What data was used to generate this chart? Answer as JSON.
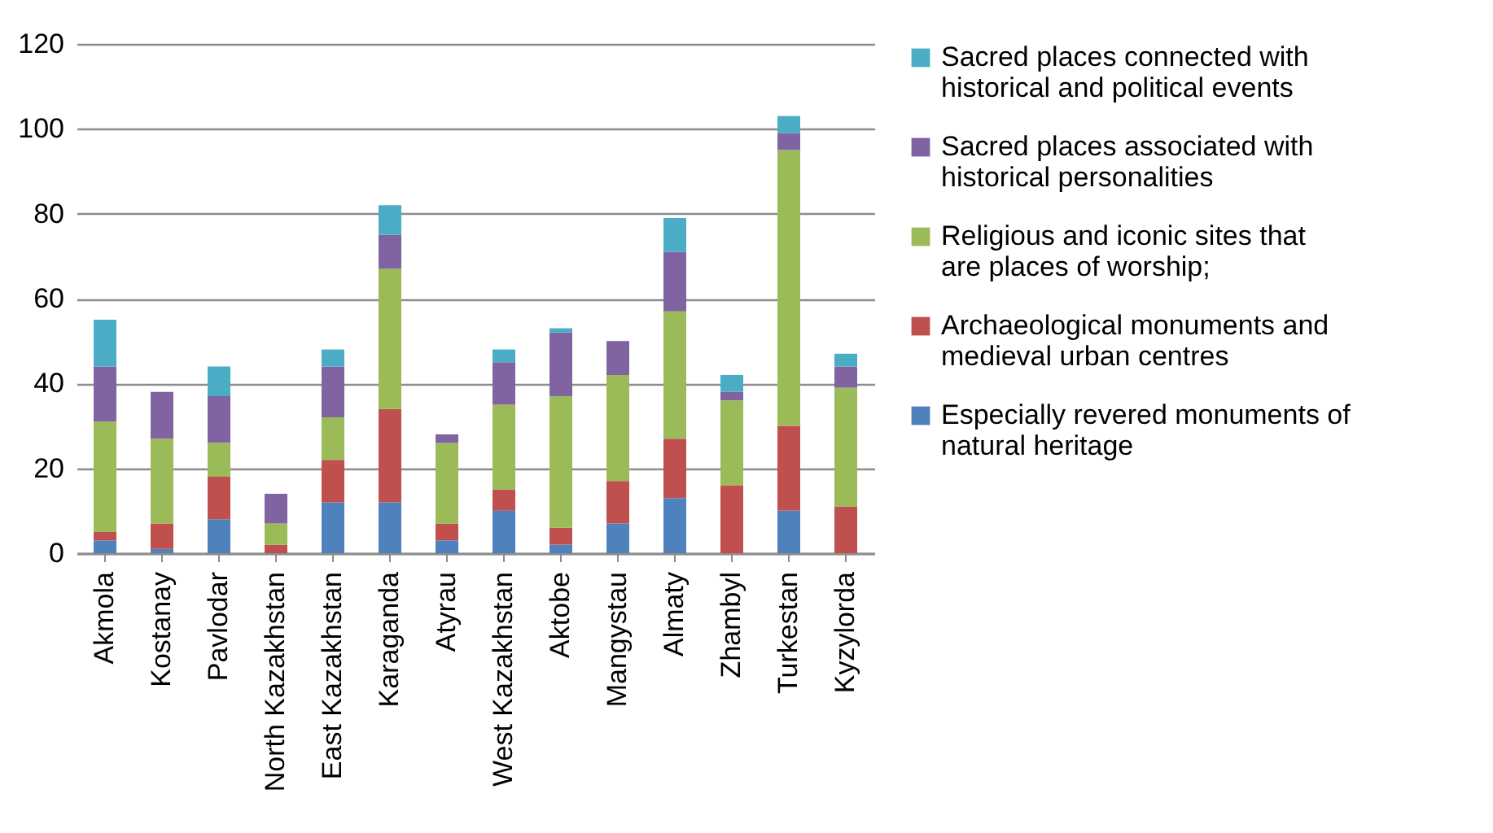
{
  "chart_data": {
    "type": "bar",
    "stacked": true,
    "categories": [
      "Akmola",
      "Kostanay",
      "Pavlodar",
      "North Kazakhstan",
      "East Kazakhstan",
      "Karaganda",
      "Atyrau",
      "West Kazakhstan",
      "Aktobe",
      "Mangystau",
      "Almaty",
      "Zhambyl",
      "Turkestan",
      "Kyzylorda"
    ],
    "series": [
      {
        "name": "Especially revered monuments of natural heritage",
        "color": "#4f81bd",
        "values": [
          3,
          1,
          8,
          0,
          12,
          12,
          3,
          10,
          2,
          7,
          13,
          0,
          10,
          0
        ]
      },
      {
        "name": "Archaeological  monuments and medieval urban centres",
        "color": "#c0504d",
        "values": [
          2,
          6,
          10,
          2,
          10,
          22,
          4,
          5,
          4,
          10,
          14,
          16,
          20,
          11
        ]
      },
      {
        "name": "Religious and iconic sites that are places of worship;",
        "color": "#9bbb59",
        "values": [
          26,
          20,
          8,
          5,
          10,
          33,
          19,
          20,
          31,
          25,
          30,
          20,
          65,
          28
        ]
      },
      {
        "name": "Sacred places associated with historical personalities",
        "color": "#8064a2",
        "values": [
          13,
          11,
          11,
          7,
          12,
          8,
          2,
          10,
          15,
          8,
          14,
          2,
          4,
          5
        ]
      },
      {
        "name": "Sacred places connected with historical and political events",
        "color": "#4bacc6",
        "values": [
          11,
          0,
          7,
          0,
          4,
          7,
          0,
          3,
          1,
          0,
          8,
          4,
          4,
          3
        ]
      }
    ],
    "ylim": [
      0,
      120
    ],
    "yticks": [
      0,
      20,
      40,
      60,
      80,
      100,
      120
    ],
    "grid": "y",
    "legend": "right"
  }
}
